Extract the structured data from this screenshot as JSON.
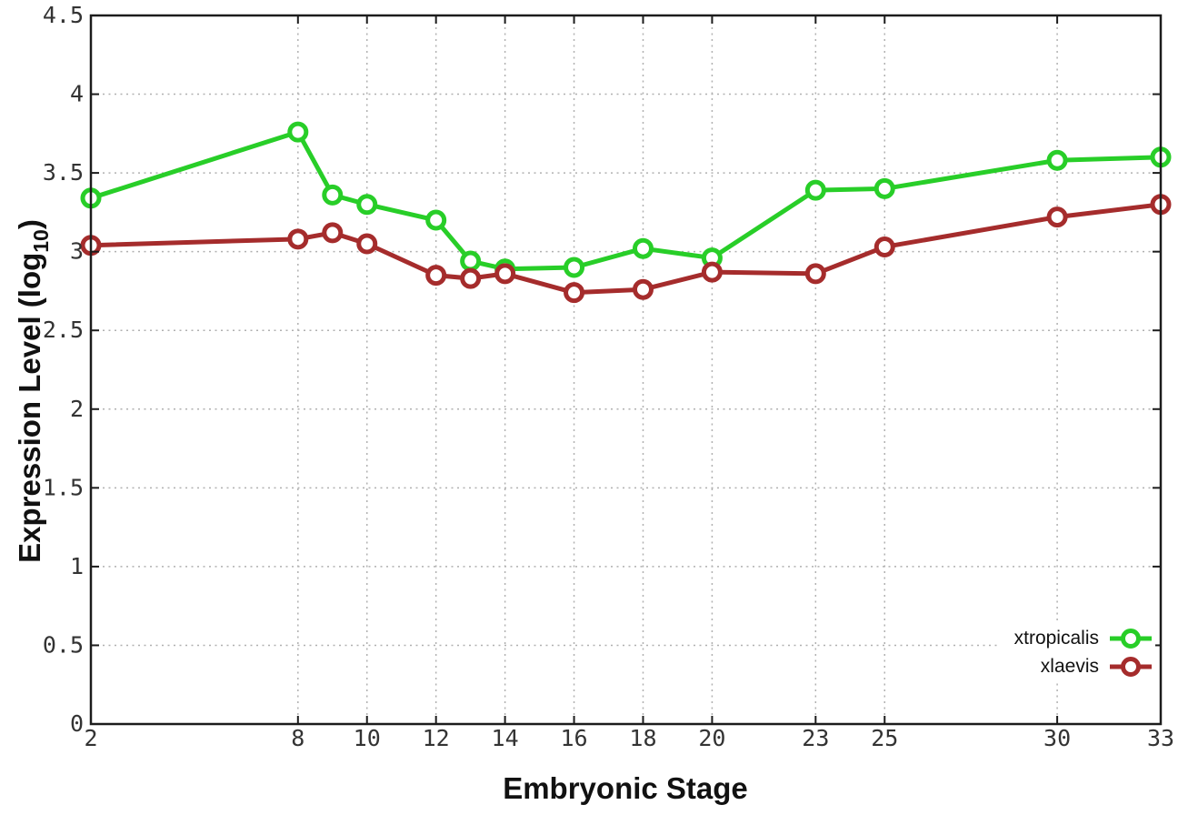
{
  "figure": {
    "background": "#ffffff",
    "xlabel": "Embryonic Stage",
    "ylabel_prefix": "Expression Level (log",
    "ylabel_sub": "10",
    "ylabel_suffix": ")"
  },
  "chart_data": {
    "type": "line",
    "title": "",
    "xlabel": "Embryonic Stage",
    "ylabel": "Expression Level (log10)",
    "x": [
      2,
      8,
      9,
      10,
      12,
      13,
      14,
      16,
      18,
      20,
      23,
      25,
      30,
      33
    ],
    "series": [
      {
        "name": "xtropicalis",
        "color": "#28ce28",
        "marker": "open-circle",
        "values": [
          3.34,
          3.76,
          3.36,
          3.3,
          3.2,
          2.94,
          2.89,
          2.9,
          3.02,
          2.96,
          3.39,
          3.4,
          3.58,
          3.6
        ]
      },
      {
        "name": "xlaevis",
        "color": "#a52c2c",
        "marker": "open-circle",
        "values": [
          3.04,
          3.08,
          3.12,
          3.05,
          2.85,
          2.83,
          2.86,
          2.74,
          2.76,
          2.87,
          2.86,
          3.03,
          3.22,
          3.3
        ]
      }
    ],
    "xlim": [
      2,
      33
    ],
    "ylim": [
      0,
      4.5
    ],
    "xticks": [
      2,
      8,
      10,
      12,
      14,
      16,
      18,
      20,
      23,
      25,
      30,
      33
    ],
    "xtick_labels": [
      "2",
      "8",
      "10",
      "12",
      "14",
      "16",
      "18",
      "20",
      "23",
      "25",
      "30",
      "33"
    ],
    "yticks": [
      0,
      0.5,
      1,
      1.5,
      2,
      2.5,
      3,
      3.5,
      4,
      4.5
    ],
    "ytick_labels": [
      "0",
      "0.5",
      "1",
      "1.5",
      "2",
      "2.5",
      "3",
      "3.5",
      "4",
      "4.5"
    ],
    "grid": true,
    "grid_style": "dotted",
    "legend_position": "bottom-right"
  },
  "styles": {
    "axis_color": "#1c1c1c",
    "grid_color": "#b0b0b0",
    "tick_label_color": "#333333",
    "marker_fill": "#ffffff"
  }
}
